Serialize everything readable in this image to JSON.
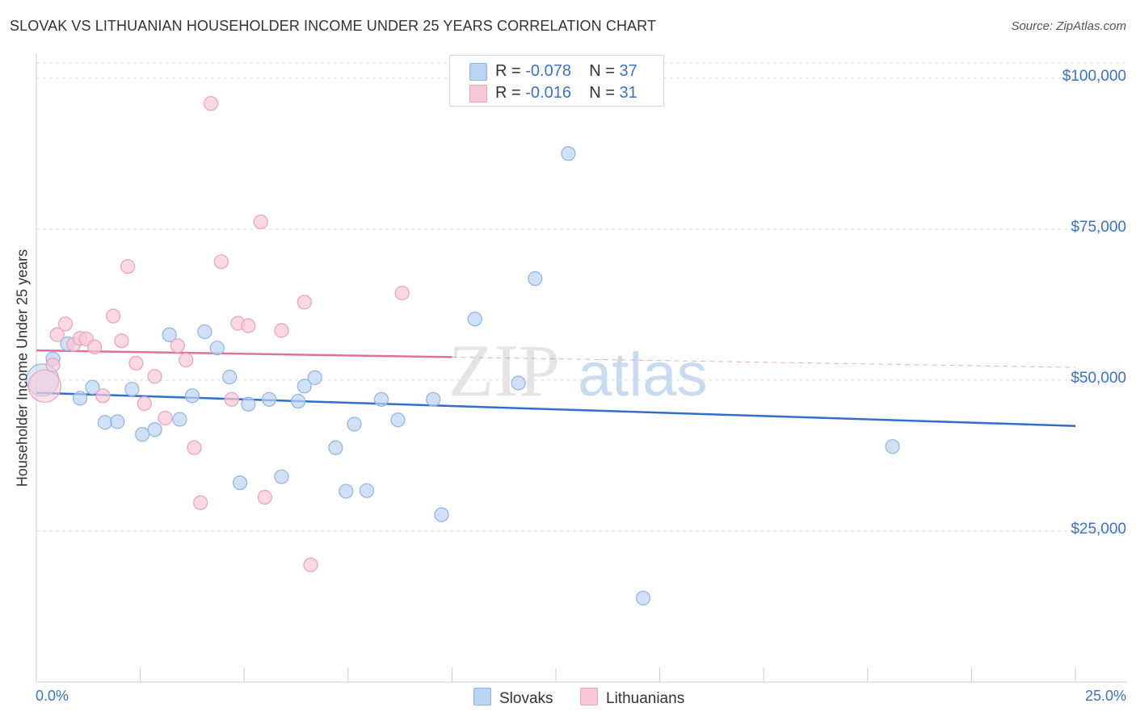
{
  "header": {
    "title": "SLOVAK VS LITHUANIAN HOUSEHOLDER INCOME UNDER 25 YEARS CORRELATION CHART",
    "source": "Source: ZipAtlas.com"
  },
  "legend_stats": {
    "slovaks": {
      "r_label": "R = ",
      "r_value": "-0.078",
      "n_label": "N = ",
      "n_value": "37"
    },
    "lithuanians": {
      "r_label": "R = ",
      "r_value": "-0.016",
      "n_label": "N = ",
      "n_value": "31"
    }
  },
  "legend_bottom": {
    "slovaks": "Slovaks",
    "lithuanians": "Lithuanians"
  },
  "watermark": {
    "zip": "ZIP",
    "atlas": "atlas"
  },
  "colors": {
    "slovak_fill": "#bcd4f3",
    "slovak_stroke": "#8fb3e3",
    "slovak_line": "#2f6fcb",
    "lithuanian_fill": "#f9c8d7",
    "lithuanian_stroke": "#eba2b9",
    "lithuanian_line": "#e0709a",
    "axis_text": "#3a73c6",
    "grid": "#dddddd"
  },
  "chart_data": {
    "type": "scatter",
    "title": "SLOVAK VS LITHUANIAN HOUSEHOLDER INCOME UNDER 25 YEARS CORRELATION CHART",
    "xlabel": "",
    "ylabel": "Householder Income Under 25 years",
    "xlim": [
      0,
      25
    ],
    "ylim": [
      0,
      102500
    ],
    "x_tick_labels": [
      "0.0%",
      "25.0%"
    ],
    "y_ticks": [
      25000,
      50000,
      75000,
      100000
    ],
    "y_tick_labels": [
      "$25,000",
      "$50,000",
      "$75,000",
      "$100,000"
    ],
    "grid": true,
    "legend_position": "top-center",
    "series": [
      {
        "name": "Slovaks",
        "points": [
          [
            0.15,
            50000
          ],
          [
            0.4,
            53500
          ],
          [
            0.75,
            56000
          ],
          [
            1.05,
            47000
          ],
          [
            1.35,
            48800
          ],
          [
            1.65,
            43000
          ],
          [
            1.95,
            43100
          ],
          [
            2.3,
            48500
          ],
          [
            2.55,
            41000
          ],
          [
            2.85,
            41800
          ],
          [
            3.2,
            57500
          ],
          [
            3.45,
            43500
          ],
          [
            3.75,
            47400
          ],
          [
            4.05,
            58000
          ],
          [
            4.35,
            55300
          ],
          [
            4.65,
            50500
          ],
          [
            4.9,
            33000
          ],
          [
            5.1,
            46000
          ],
          [
            5.6,
            46800
          ],
          [
            5.9,
            34000
          ],
          [
            6.3,
            46500
          ],
          [
            6.45,
            49000
          ],
          [
            6.7,
            50400
          ],
          [
            7.2,
            38800
          ],
          [
            7.45,
            31600
          ],
          [
            7.65,
            42700
          ],
          [
            7.95,
            31700
          ],
          [
            8.3,
            46800
          ],
          [
            8.7,
            43400
          ],
          [
            9.55,
            46800
          ],
          [
            9.75,
            27700
          ],
          [
            10.55,
            60100
          ],
          [
            11.6,
            49500
          ],
          [
            12.0,
            66800
          ],
          [
            12.8,
            87500
          ],
          [
            14.6,
            13900
          ],
          [
            20.6,
            39000
          ]
        ]
      },
      {
        "name": "Lithuanians",
        "points": [
          [
            0.2,
            49000
          ],
          [
            0.4,
            52500
          ],
          [
            0.5,
            57500
          ],
          [
            0.7,
            59300
          ],
          [
            0.9,
            55900
          ],
          [
            1.05,
            56900
          ],
          [
            1.2,
            56800
          ],
          [
            1.4,
            55500
          ],
          [
            1.6,
            47400
          ],
          [
            1.85,
            60600
          ],
          [
            2.05,
            56500
          ],
          [
            2.2,
            68800
          ],
          [
            2.4,
            52800
          ],
          [
            2.6,
            46100
          ],
          [
            2.85,
            50600
          ],
          [
            3.1,
            43700
          ],
          [
            3.4,
            55700
          ],
          [
            3.6,
            53300
          ],
          [
            3.8,
            38800
          ],
          [
            3.95,
            29700
          ],
          [
            4.2,
            95800
          ],
          [
            4.45,
            69600
          ],
          [
            4.7,
            46800
          ],
          [
            4.85,
            59400
          ],
          [
            5.1,
            59000
          ],
          [
            5.4,
            76200
          ],
          [
            5.5,
            30600
          ],
          [
            5.9,
            58200
          ],
          [
            6.45,
            62900
          ],
          [
            6.6,
            19400
          ],
          [
            8.8,
            64400
          ]
        ]
      }
    ],
    "trend_lines": [
      {
        "series": "Slovaks",
        "from": [
          0,
          47900
        ],
        "to": [
          25,
          42400
        ],
        "style": "solid"
      },
      {
        "series": "Lithuanians",
        "from": [
          0,
          54900
        ],
        "to": [
          10,
          53800
        ],
        "style": "solid"
      },
      {
        "series": "Lithuanians",
        "from": [
          10,
          53800
        ],
        "to": [
          25,
          52100
        ],
        "style": "dashed"
      }
    ]
  }
}
